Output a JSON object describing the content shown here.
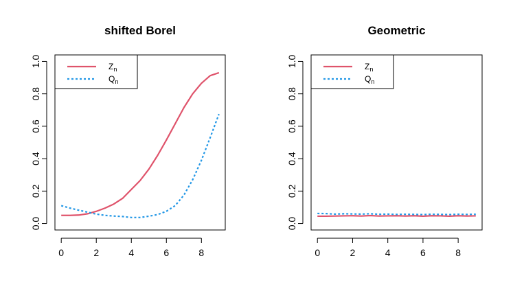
{
  "chart_data": [
    {
      "type": "line",
      "title": "shifted Borel",
      "xlabel": "",
      "ylabel": "",
      "xlim": [
        -0.36,
        9.36
      ],
      "ylim": [
        -0.04,
        1.04
      ],
      "xticks": [
        "0",
        "2",
        "4",
        "6",
        "8"
      ],
      "yticks": [
        "0.0",
        "0.2",
        "0.4",
        "0.6",
        "0.8",
        "1.0"
      ],
      "grid": false,
      "legend_position": "top-left",
      "x": [
        0,
        0.5,
        1,
        1.5,
        2,
        2.5,
        3,
        3.5,
        4,
        4.5,
        5,
        5.5,
        6,
        6.5,
        7,
        7.5,
        8,
        8.5,
        9
      ],
      "series": [
        {
          "name": "Z",
          "name_sub": "n",
          "color": "#DF536B",
          "dash": "solid",
          "values": [
            0.05,
            0.05,
            0.052,
            0.06,
            0.075,
            0.095,
            0.12,
            0.155,
            0.21,
            0.265,
            0.335,
            0.42,
            0.515,
            0.615,
            0.715,
            0.8,
            0.865,
            0.912,
            0.93
          ]
        },
        {
          "name": "Q",
          "name_sub": "n",
          "color": "#2297E6",
          "dash": "dotted",
          "values": [
            0.11,
            0.095,
            0.082,
            0.07,
            0.058,
            0.05,
            0.046,
            0.043,
            0.037,
            0.037,
            0.045,
            0.055,
            0.075,
            0.11,
            0.175,
            0.27,
            0.39,
            0.53,
            0.675
          ]
        }
      ]
    },
    {
      "type": "line",
      "title": "Geometric",
      "xlabel": "",
      "ylabel": "",
      "xlim": [
        -0.36,
        9.36
      ],
      "ylim": [
        -0.04,
        1.04
      ],
      "xticks": [
        "0",
        "2",
        "4",
        "6",
        "8"
      ],
      "yticks": [
        "0.0",
        "0.2",
        "0.4",
        "0.6",
        "0.8",
        "1.0"
      ],
      "grid": false,
      "legend_position": "top-left",
      "x": [
        0,
        0.5,
        1,
        1.5,
        2,
        2.5,
        3,
        3.5,
        4,
        4.5,
        5,
        5.5,
        6,
        6.5,
        7,
        7.5,
        8,
        8.5,
        9
      ],
      "series": [
        {
          "name": "Z",
          "name_sub": "n",
          "color": "#DF536B",
          "dash": "solid",
          "values": [
            0.045,
            0.045,
            0.046,
            0.047,
            0.048,
            0.046,
            0.049,
            0.046,
            0.047,
            0.048,
            0.046,
            0.048,
            0.045,
            0.048,
            0.047,
            0.045,
            0.048,
            0.046,
            0.047
          ]
        },
        {
          "name": "Q",
          "name_sub": "n",
          "color": "#2297E6",
          "dash": "dotted",
          "values": [
            0.062,
            0.061,
            0.058,
            0.06,
            0.059,
            0.058,
            0.06,
            0.057,
            0.058,
            0.056,
            0.057,
            0.056,
            0.055,
            0.057,
            0.056,
            0.055,
            0.057,
            0.056,
            0.057
          ]
        }
      ]
    }
  ]
}
